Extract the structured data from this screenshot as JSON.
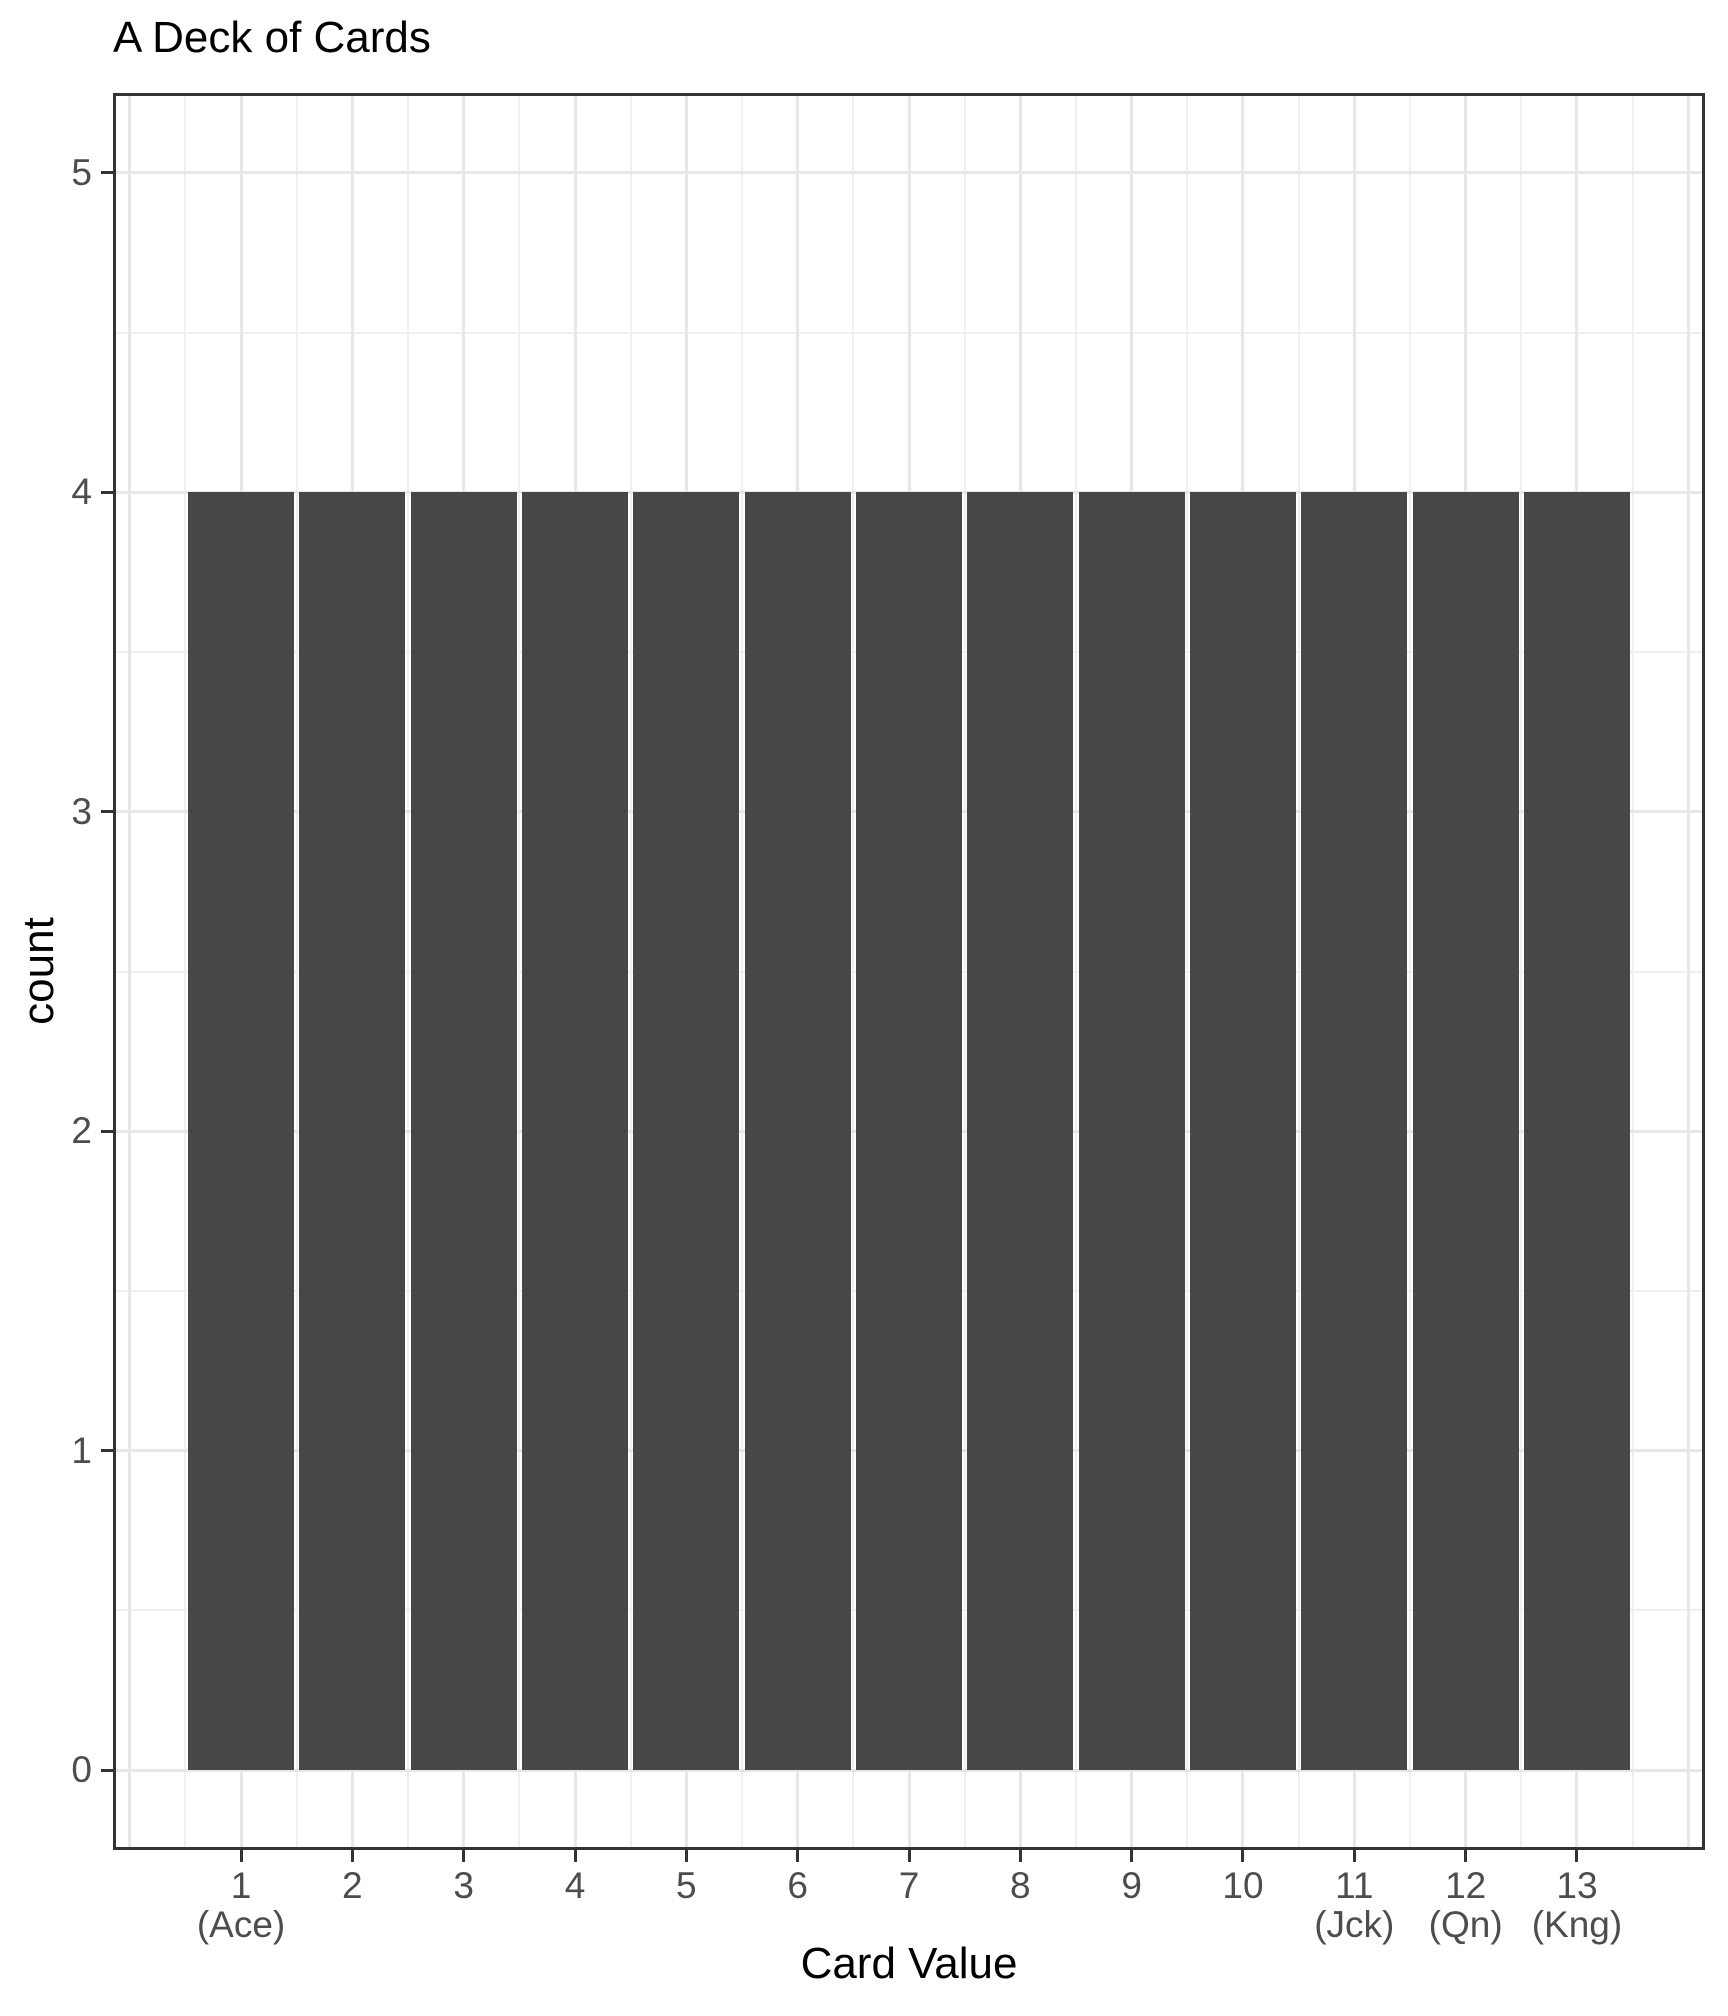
{
  "chart_data": {
    "type": "bar",
    "title": "A Deck of Cards",
    "xlabel": "Card Value",
    "ylabel": "count",
    "categories": [
      1,
      2,
      3,
      4,
      5,
      6,
      7,
      8,
      9,
      10,
      11,
      12,
      13
    ],
    "values": [
      4,
      4,
      4,
      4,
      4,
      4,
      4,
      4,
      4,
      4,
      4,
      4,
      4
    ],
    "x_tick_labels": [
      "1\n(Ace)",
      "2",
      "3",
      "4",
      "5",
      "6",
      "7",
      "8",
      "9",
      "10",
      "11\n(Jck)",
      "12\n(Qn)",
      "13\n(Kng)"
    ],
    "y_tick_labels": [
      "0",
      "1",
      "2",
      "3",
      "4",
      "5"
    ],
    "y_tick_values": [
      0,
      1,
      2,
      3,
      4,
      5
    ],
    "x_tick_values": [
      1,
      2,
      3,
      4,
      5,
      6,
      7,
      8,
      9,
      10,
      11,
      12,
      13
    ],
    "xlim": [
      -0.15,
      14.15
    ],
    "ylim": [
      -0.25,
      5.25
    ],
    "bar_width": 0.95,
    "x_major_gridlines": [
      0,
      1,
      2,
      3,
      4,
      5,
      6,
      7,
      8,
      9,
      10,
      11,
      12,
      13,
      14
    ],
    "x_minor_gridlines": [
      0.5,
      1.5,
      2.5,
      3.5,
      4.5,
      5.5,
      6.5,
      7.5,
      8.5,
      9.5,
      10.5,
      11.5,
      12.5,
      13.5
    ],
    "y_major_gridlines": [
      0,
      1,
      2,
      3,
      4,
      5
    ],
    "y_minor_gridlines": [
      0.5,
      1.5,
      2.5,
      3.5,
      4.5
    ],
    "grid": true,
    "legend": false,
    "theme": "bw",
    "colors": {
      "bar_fill": "#474747",
      "panel_border": "#333333",
      "axis_tick": "#333333",
      "grid_major": "#e7e7e7",
      "grid_minor": "#f0f0f0",
      "tick_label": "#4d4d4d",
      "title_text": "#000000",
      "background": "#ffffff"
    }
  }
}
